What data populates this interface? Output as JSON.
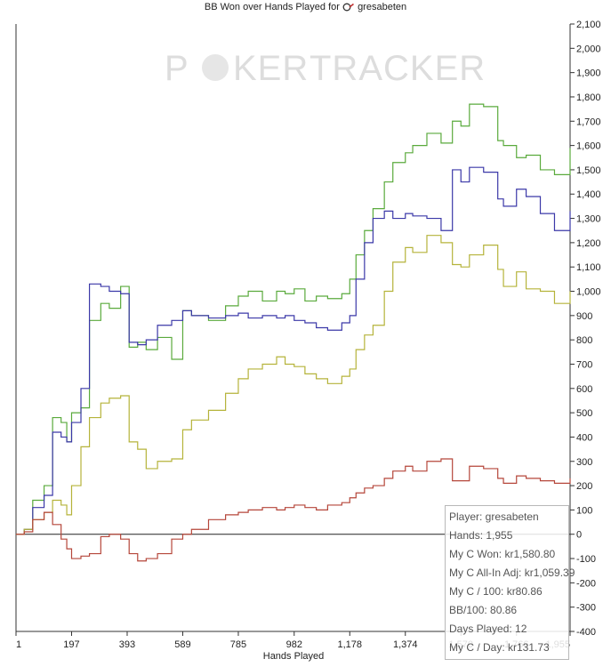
{
  "chart_data": {
    "type": "line",
    "title": "BB Won over Hands Played for",
    "player": "gresabeten",
    "xlabel": "Hands Played",
    "ylabel": "",
    "watermark": {
      "part1": "P",
      "part2": "KER",
      "part3": "TRACKER"
    },
    "xlim": [
      1,
      1955
    ],
    "ylim": [
      -400,
      2100
    ],
    "x_ticks": [
      "1",
      "197",
      "393",
      "589",
      "785",
      "982",
      "1,178",
      "1,374",
      "1,570",
      "1,766",
      "1,955"
    ],
    "x_tick_values": [
      1,
      197,
      393,
      589,
      785,
      982,
      1178,
      1374,
      1570,
      1766,
      1955
    ],
    "y_ticks": [
      -400,
      -300,
      -200,
      -100,
      0,
      100,
      200,
      300,
      400,
      500,
      600,
      700,
      800,
      900,
      1000,
      1100,
      1200,
      1300,
      1400,
      1500,
      1600,
      1700,
      1800,
      1900,
      2000,
      2100
    ],
    "y_tick_labels": [
      "-400",
      "-300",
      "-200",
      "-100",
      "0",
      "100",
      "200",
      "300",
      "400",
      "500",
      "600",
      "700",
      "800",
      "900",
      "1,000",
      "1,100",
      "1,200",
      "1,300",
      "1,400",
      "1,500",
      "1,600",
      "1,700",
      "1,800",
      "1,900",
      "2,000",
      "2,100"
    ],
    "grid": false,
    "series": [
      {
        "color": "#5aaa3c",
        "x": [
          1,
          30,
          60,
          100,
          130,
          160,
          180,
          197,
          230,
          260,
          300,
          330,
          370,
          400,
          430,
          460,
          500,
          550,
          589,
          620,
          680,
          740,
          785,
          820,
          870,
          920,
          950,
          982,
          1020,
          1060,
          1100,
          1150,
          1178,
          1200,
          1230,
          1260,
          1300,
          1330,
          1374,
          1400,
          1450,
          1500,
          1540,
          1570,
          1600,
          1650,
          1700,
          1720,
          1766,
          1800,
          1850,
          1900,
          1955
        ],
        "y": [
          0,
          20,
          140,
          200,
          480,
          460,
          380,
          500,
          520,
          880,
          950,
          930,
          1020,
          770,
          790,
          760,
          810,
          720,
          920,
          900,
          880,
          940,
          980,
          1000,
          960,
          1000,
          990,
          1010,
          960,
          980,
          970,
          990,
          1050,
          1150,
          1250,
          1340,
          1450,
          1530,
          1570,
          1600,
          1650,
          1610,
          1700,
          1680,
          1770,
          1760,
          1620,
          1600,
          1550,
          1560,
          1500,
          1480,
          1590
        ]
      },
      {
        "color": "#3b38a8",
        "x": [
          1,
          30,
          60,
          100,
          130,
          160,
          180,
          197,
          230,
          260,
          300,
          330,
          370,
          400,
          430,
          460,
          500,
          550,
          589,
          620,
          680,
          740,
          785,
          820,
          870,
          920,
          950,
          982,
          1020,
          1060,
          1100,
          1150,
          1178,
          1200,
          1230,
          1260,
          1300,
          1330,
          1374,
          1400,
          1450,
          1500,
          1540,
          1570,
          1600,
          1650,
          1700,
          1720,
          1766,
          1800,
          1850,
          1900,
          1955
        ],
        "y": [
          0,
          20,
          110,
          160,
          420,
          400,
          380,
          460,
          600,
          1030,
          1020,
          1000,
          990,
          790,
          780,
          800,
          860,
          880,
          920,
          900,
          890,
          900,
          910,
          890,
          900,
          890,
          900,
          880,
          870,
          850,
          840,
          870,
          900,
          1050,
          1200,
          1300,
          1330,
          1300,
          1320,
          1310,
          1300,
          1250,
          1500,
          1450,
          1510,
          1490,
          1380,
          1350,
          1420,
          1390,
          1320,
          1250,
          1330
        ]
      },
      {
        "color": "#b5b33a",
        "x": [
          1,
          30,
          60,
          100,
          130,
          160,
          180,
          197,
          230,
          260,
          300,
          330,
          370,
          400,
          430,
          460,
          500,
          550,
          589,
          620,
          680,
          740,
          785,
          820,
          870,
          920,
          950,
          982,
          1020,
          1060,
          1100,
          1150,
          1178,
          1200,
          1230,
          1260,
          1300,
          1330,
          1374,
          1400,
          1450,
          1500,
          1540,
          1570,
          1600,
          1650,
          1700,
          1720,
          1766,
          1800,
          1850,
          1900,
          1955
        ],
        "y": [
          0,
          20,
          60,
          90,
          140,
          120,
          80,
          200,
          360,
          480,
          540,
          560,
          570,
          380,
          350,
          270,
          300,
          310,
          430,
          470,
          510,
          580,
          640,
          680,
          700,
          730,
          700,
          690,
          660,
          640,
          620,
          650,
          680,
          760,
          820,
          860,
          1000,
          1120,
          1180,
          1160,
          1230,
          1200,
          1110,
          1100,
          1150,
          1190,
          1090,
          1020,
          1080,
          1010,
          1000,
          950,
          1000
        ]
      },
      {
        "color": "#b5463a",
        "x": [
          1,
          30,
          60,
          100,
          130,
          160,
          180,
          197,
          230,
          260,
          300,
          330,
          370,
          400,
          430,
          460,
          500,
          550,
          589,
          620,
          680,
          740,
          785,
          820,
          870,
          920,
          950,
          982,
          1020,
          1060,
          1100,
          1150,
          1178,
          1200,
          1230,
          1260,
          1300,
          1330,
          1374,
          1400,
          1450,
          1500,
          1540,
          1570,
          1600,
          1650,
          1700,
          1720,
          1766,
          1800,
          1850,
          1900,
          1955
        ],
        "y": [
          0,
          10,
          60,
          90,
          40,
          -20,
          -60,
          -100,
          -90,
          -80,
          -10,
          0,
          -20,
          -80,
          -110,
          -100,
          -80,
          -20,
          0,
          20,
          60,
          80,
          90,
          100,
          110,
          100,
          110,
          120,
          110,
          100,
          120,
          130,
          150,
          170,
          190,
          200,
          230,
          260,
          280,
          260,
          300,
          310,
          220,
          220,
          280,
          270,
          230,
          210,
          240,
          230,
          220,
          210,
          230
        ]
      }
    ]
  },
  "stats": {
    "rows": [
      "Player: gresabeten",
      "Hands: 1,955",
      "My C Won: kr1,580.80",
      "My C All-In Adj: kr1,059.39",
      "My C / 100: kr80.86",
      "BB/100: 80.86",
      "Days Played: 12",
      "My C / Day: kr131.73"
    ]
  }
}
